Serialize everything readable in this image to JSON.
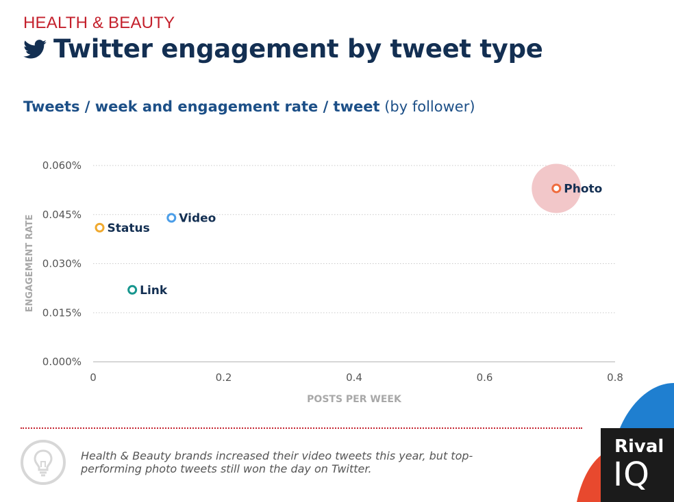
{
  "header": {
    "category": "HEALTH & BEAUTY",
    "title": "Twitter engagement by tweet type",
    "subtitle_bold": "Tweets / week and engagement rate / tweet",
    "subtitle_light": "(by follower)"
  },
  "chart_data": {
    "type": "scatter",
    "xlabel": "POSTS PER WEEK",
    "ylabel": "ENGAGEMENT RATE",
    "xlim": [
      0,
      0.8
    ],
    "ylim": [
      0,
      0.06
    ],
    "x_ticks": [
      "0",
      "0.2",
      "0.4",
      "0.6",
      "0.8"
    ],
    "y_ticks": [
      "0.000%",
      "0.015%",
      "0.030%",
      "0.045%",
      "0.060%"
    ],
    "grid": true,
    "points": [
      {
        "label": "Status",
        "x": 0.01,
        "y": 0.041,
        "color": "#f0a92e"
      },
      {
        "label": "Video",
        "x": 0.12,
        "y": 0.044,
        "color": "#4a9de8"
      },
      {
        "label": "Link",
        "x": 0.06,
        "y": 0.022,
        "color": "#17968e"
      },
      {
        "label": "Photo",
        "x": 0.71,
        "y": 0.053,
        "color": "#ef6c3e",
        "highlight": true,
        "highlight_color": "#f2c7c9"
      }
    ]
  },
  "footer": {
    "note": "Health & Beauty brands increased their video tweets this year, but top-performing photo tweets still won the day on Twitter.",
    "icon": "lightbulb-icon"
  },
  "logo": {
    "line1": "Rival",
    "line2": "IQ"
  },
  "colors": {
    "accent_red": "#c4202c",
    "title_navy": "#132f52",
    "subtitle_blue": "#1c4f87"
  }
}
